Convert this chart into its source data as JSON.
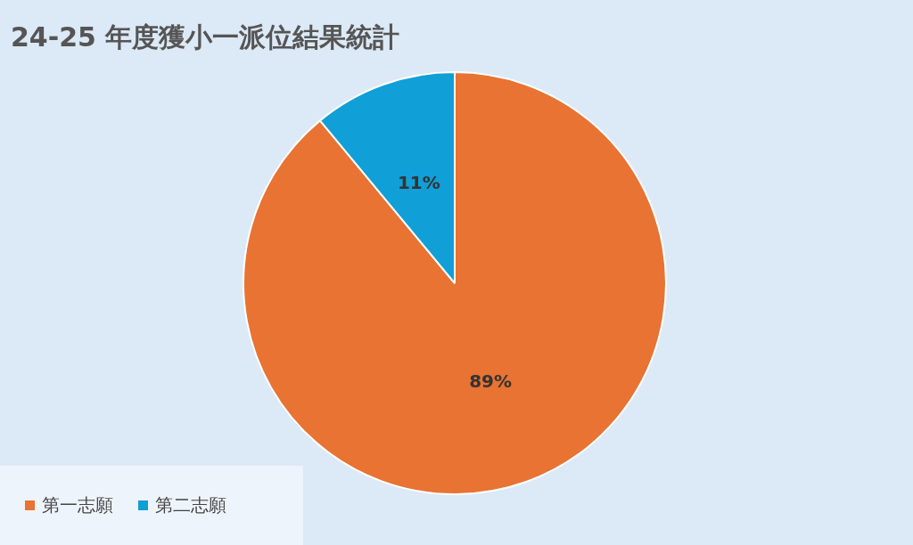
{
  "chart_data": {
    "type": "pie",
    "title": "24-25 年度獲小一派位結果統計",
    "categories": [
      "第一志願",
      "第二志願"
    ],
    "values": [
      89,
      11
    ],
    "colors": [
      "#e87333",
      "#109fd6"
    ],
    "value_labels": [
      "89%",
      "11%"
    ],
    "legend": "bottom left"
  }
}
